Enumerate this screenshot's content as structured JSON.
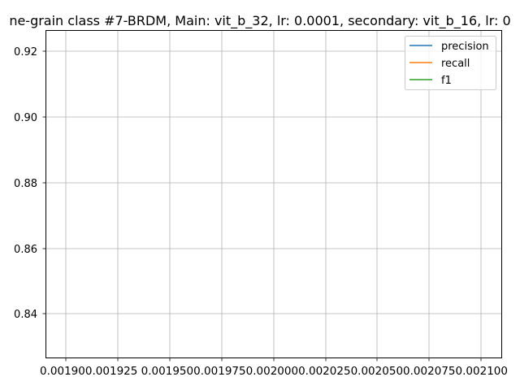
{
  "chart_data": {
    "type": "line",
    "title": "ne-grain class #7-BRDM, Main: vit_b_32, lr: 0.0001, secondary: vit_b_16, lr: 0",
    "xlabel": "",
    "ylabel": "",
    "x_ticks": [
      "0.00190",
      "0.00192",
      "0.00195",
      "0.00197",
      "0.00200",
      "0.00202",
      "0.00205",
      "0.00207",
      "0.00210"
    ],
    "x_tick_labels_rendered": "0.001900.001925 0.0019500.0019750.0020000.0020250.0020500.0020750.002100",
    "y_ticks": [
      "0.84",
      "0.86",
      "0.88",
      "0.90",
      "0.92"
    ],
    "ylim": [
      0.8265,
      0.9265
    ],
    "xlim": [
      0.00188,
      0.002102
    ],
    "grid": true,
    "legend_placement": "top-right",
    "series": [
      {
        "name": "precision",
        "color": "#1f77b4",
        "x": [],
        "y": []
      },
      {
        "name": "recall",
        "color": "#ff7f0e",
        "x": [],
        "y": []
      },
      {
        "name": "f1",
        "color": "#2ca02c",
        "x": [],
        "y": []
      }
    ]
  }
}
